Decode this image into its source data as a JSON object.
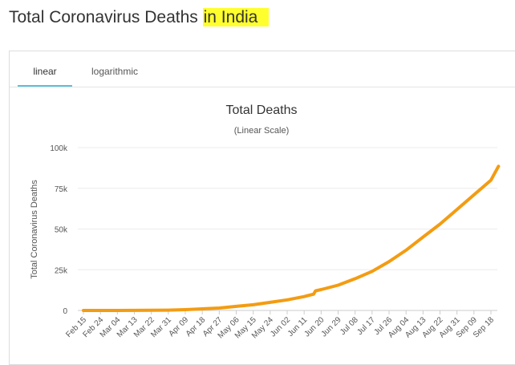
{
  "page": {
    "title_main": "Total Coronavirus Deaths ",
    "title_highlight": "in India",
    "highlight_color": "#ffff2e"
  },
  "tabs": [
    {
      "label": "linear",
      "active": true
    },
    {
      "label": "logarithmic",
      "active": false
    }
  ],
  "chart_data": {
    "type": "line",
    "title": "Total Deaths",
    "subtitle": "(Linear Scale)",
    "ylabel": "Total Coronavirus Deaths",
    "xlabel": "",
    "ylim": [
      0,
      100000
    ],
    "y_ticks": [
      {
        "value": 0,
        "label": "0"
      },
      {
        "value": 25000,
        "label": "25k"
      },
      {
        "value": 50000,
        "label": "50k"
      },
      {
        "value": 75000,
        "label": "75k"
      },
      {
        "value": 100000,
        "label": "100k"
      }
    ],
    "x_tick_labels": [
      "Feb 15",
      "Feb 24",
      "Mar 04",
      "Mar 13",
      "Mar 22",
      "Mar 31",
      "Apr 09",
      "Apr 18",
      "Apr 27",
      "May 06",
      "May 15",
      "May 24",
      "Jun 02",
      "Jun 11",
      "Jun 20",
      "Jun 29",
      "Jul 08",
      "Jul 17",
      "Jul 26",
      "Aug 04",
      "Aug 13",
      "Aug 22",
      "Aug 31",
      "Sep 09",
      "Sep 18"
    ],
    "grid": true,
    "line_color": "#f39c12",
    "series": [
      {
        "x": [
          "Feb 15",
          "Feb 24",
          "Mar 04",
          "Mar 13",
          "Mar 22",
          "Mar 31",
          "Apr 09",
          "Apr 18",
          "Apr 27",
          "May 06",
          "May 15",
          "May 24",
          "Jun 02",
          "Jun 11",
          "Jun 16",
          "Jun 17",
          "Jun 20",
          "Jun 29",
          "Jul 08",
          "Jul 17",
          "Jul 26",
          "Aug 04",
          "Aug 13",
          "Aug 22",
          "Aug 31",
          "Sep 09",
          "Sep 18",
          "Sep 22"
        ],
        "values": [
          0,
          0,
          0,
          50,
          100,
          200,
          500,
          1000,
          1500,
          2500,
          3500,
          5000,
          6500,
          8500,
          10000,
          12000,
          12800,
          15500,
          19500,
          24000,
          30000,
          37000,
          45000,
          53000,
          62000,
          71000,
          80000,
          88500
        ]
      }
    ]
  }
}
